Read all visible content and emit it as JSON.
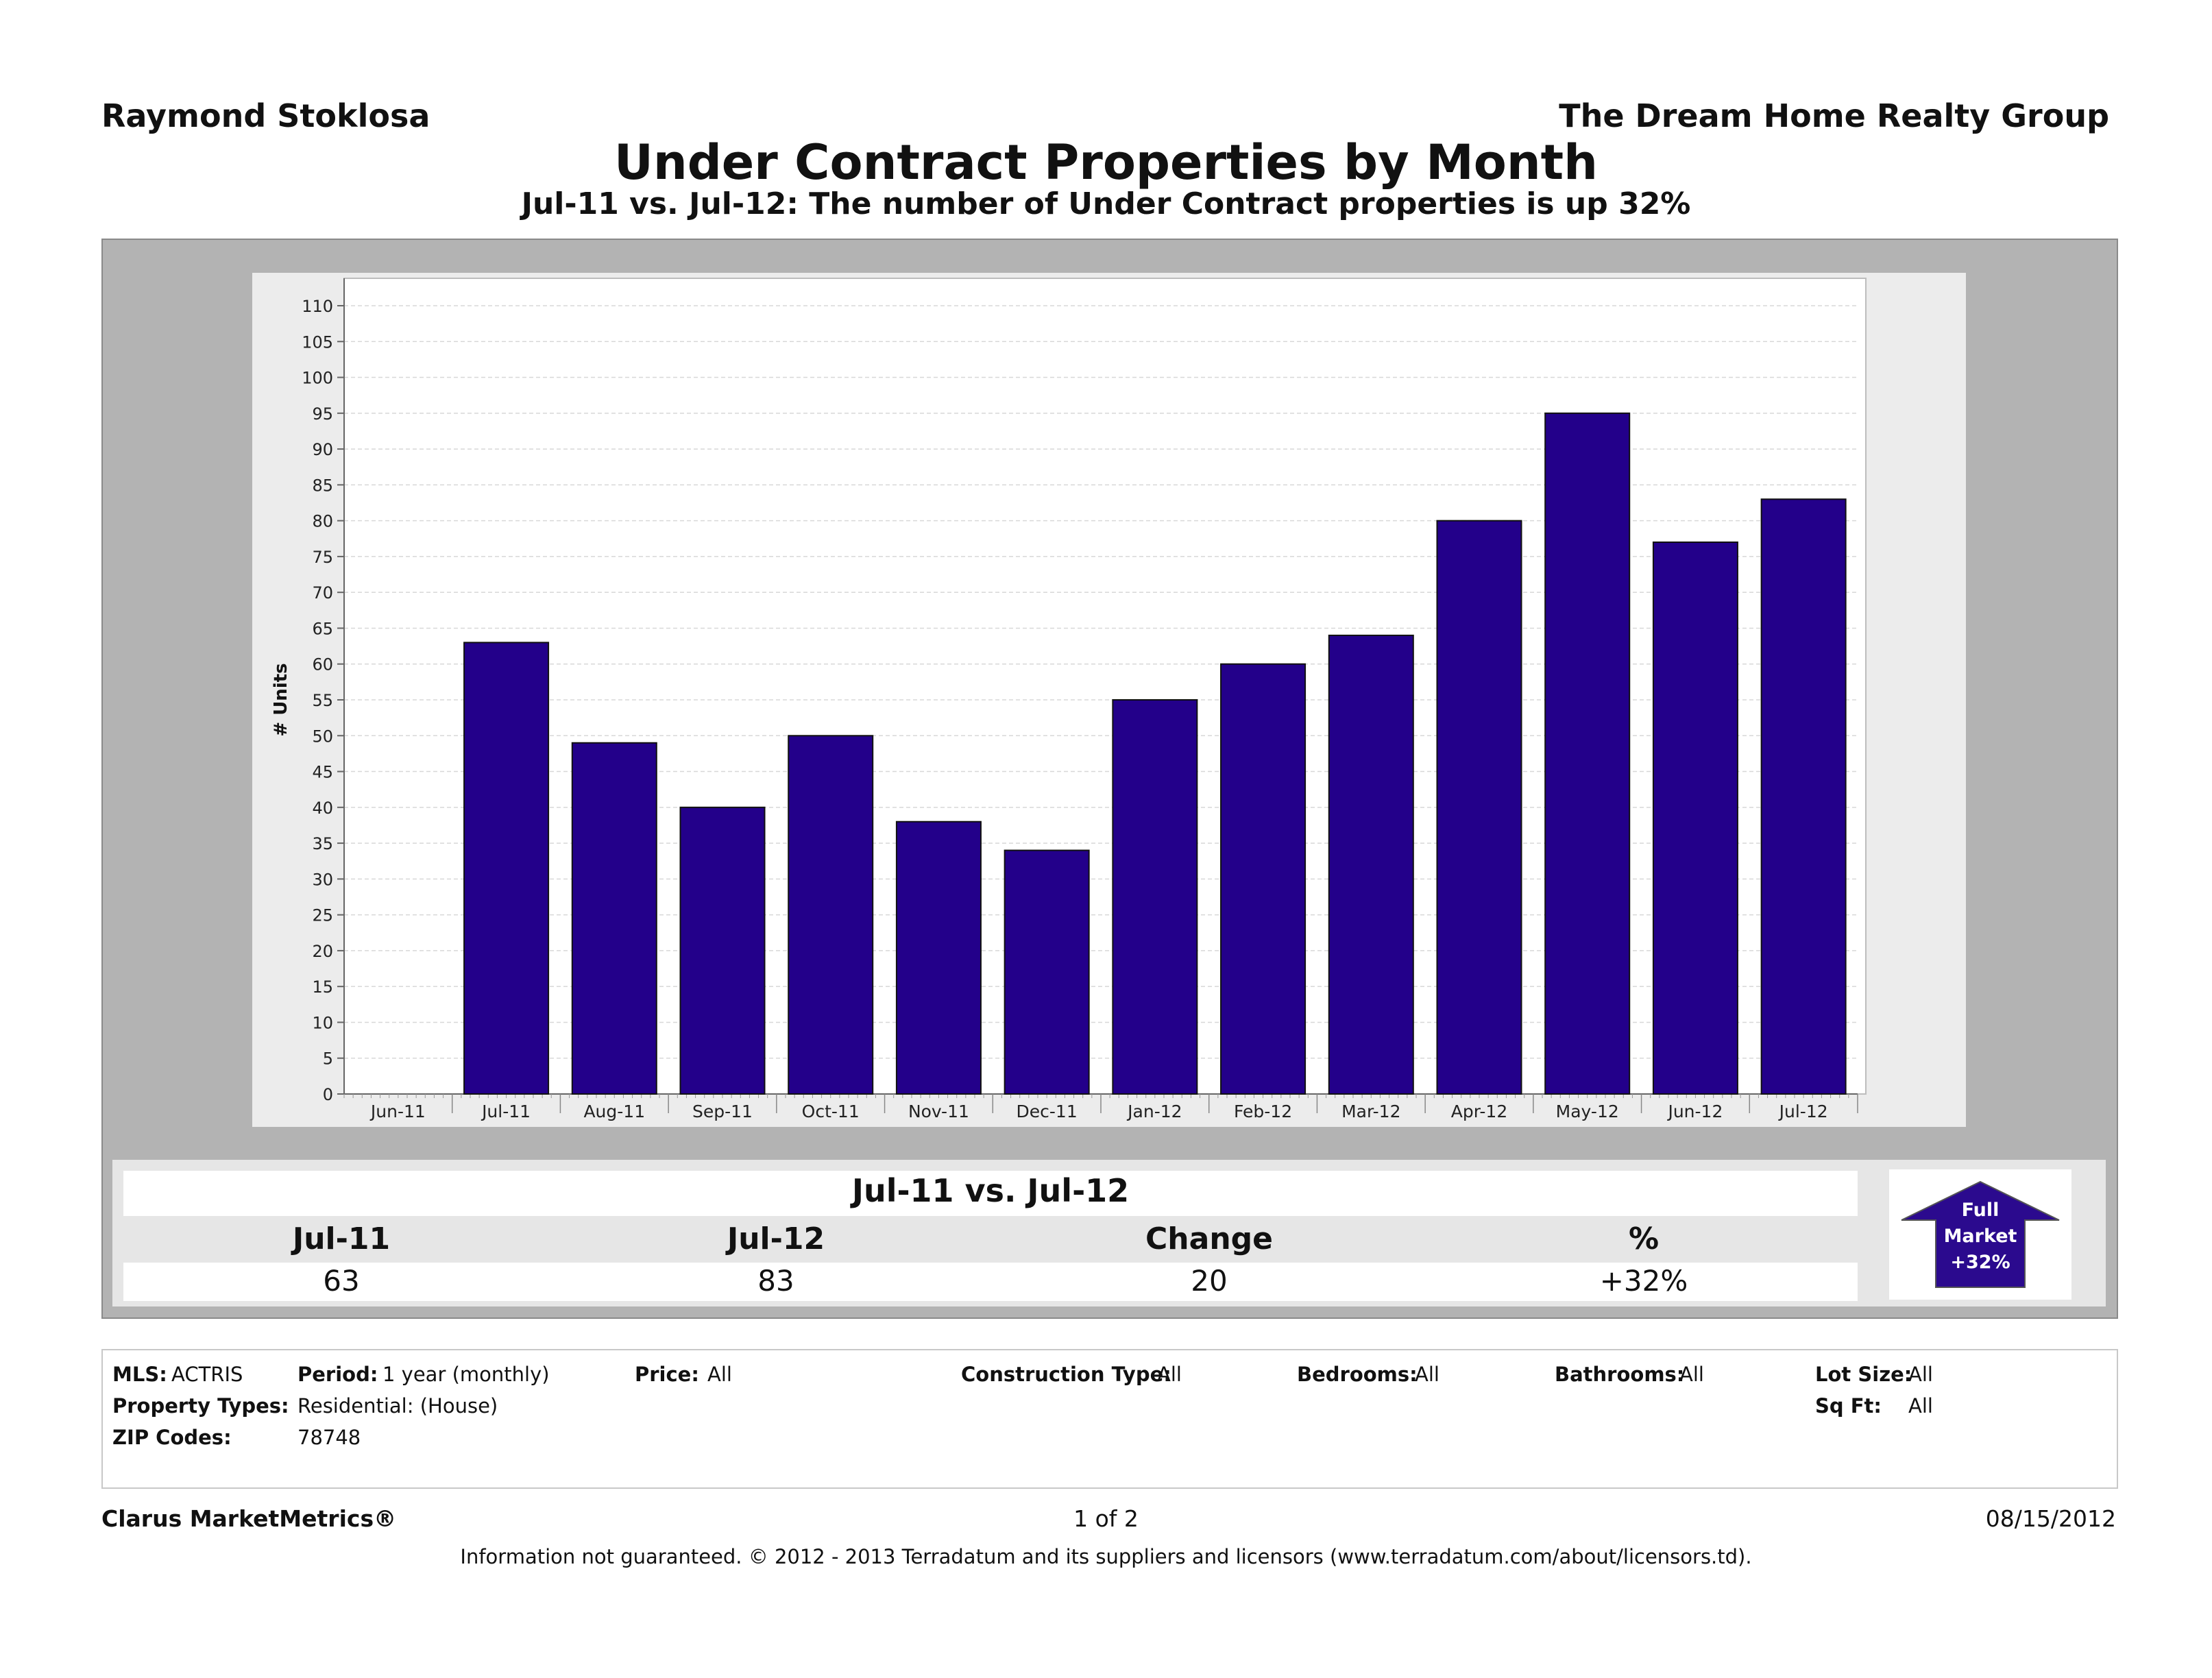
{
  "header": {
    "agent": "Raymond Stoklosa",
    "company": "The Dream Home Realty Group",
    "title": "Under Contract Properties by Month",
    "subtitle": "Jul-11 vs. Jul-12: The number of Under Contract properties is up 32%"
  },
  "chart_data": {
    "type": "bar",
    "categories": [
      "Jun-11",
      "Jul-11",
      "Aug-11",
      "Sep-11",
      "Oct-11",
      "Nov-11",
      "Dec-11",
      "Jan-12",
      "Feb-12",
      "Mar-12",
      "Apr-12",
      "May-12",
      "Jun-12",
      "Jul-12"
    ],
    "values": [
      0,
      63,
      49,
      40,
      50,
      38,
      34,
      55,
      60,
      64,
      80,
      95,
      77,
      83
    ],
    "ylabel": "# Units",
    "ylim": [
      0,
      110
    ],
    "yticks": [
      0,
      5,
      10,
      15,
      20,
      25,
      30,
      35,
      40,
      45,
      50,
      55,
      60,
      65,
      70,
      75,
      80,
      85,
      90,
      95,
      100,
      105,
      110
    ],
    "bar_color": "#23008a",
    "grid": true
  },
  "comparison": {
    "title": "Jul-11 vs. Jul-12",
    "headers": [
      "Jul-11",
      "Jul-12",
      "Change",
      "%"
    ],
    "values": [
      "63",
      "83",
      "20",
      "+32%"
    ]
  },
  "badge": {
    "line1": "Full",
    "line2": "Market",
    "line3": "+32%",
    "icon": "up-arrow-icon",
    "color": "#2b0a8e"
  },
  "criteria": {
    "mls_label": "MLS:",
    "mls": "ACTRIS",
    "period_label": "Period:",
    "period": "1 year (monthly)",
    "price_label": "Price:",
    "price": "All",
    "construction_label": "Construction Type:",
    "construction": "All",
    "bedrooms_label": "Bedrooms:",
    "bedrooms": "All",
    "bathrooms_label": "Bathrooms:",
    "bathrooms": "All",
    "lotsize_label": "Lot Size:",
    "lotsize": "All",
    "proptypes_label": "Property Types:",
    "proptypes": "Residential: (House)",
    "sqft_label": "Sq Ft:",
    "sqft": "All",
    "zip_label": "ZIP Codes:",
    "zip": "78748"
  },
  "footer": {
    "brand": "Clarus MarketMetrics®",
    "page": "1 of 2",
    "date": "08/15/2012",
    "disclaimer": "Information not guaranteed.  © 2012 - 2013 Terradatum and its suppliers and licensors (www.terradatum.com/about/licensors.td)."
  }
}
